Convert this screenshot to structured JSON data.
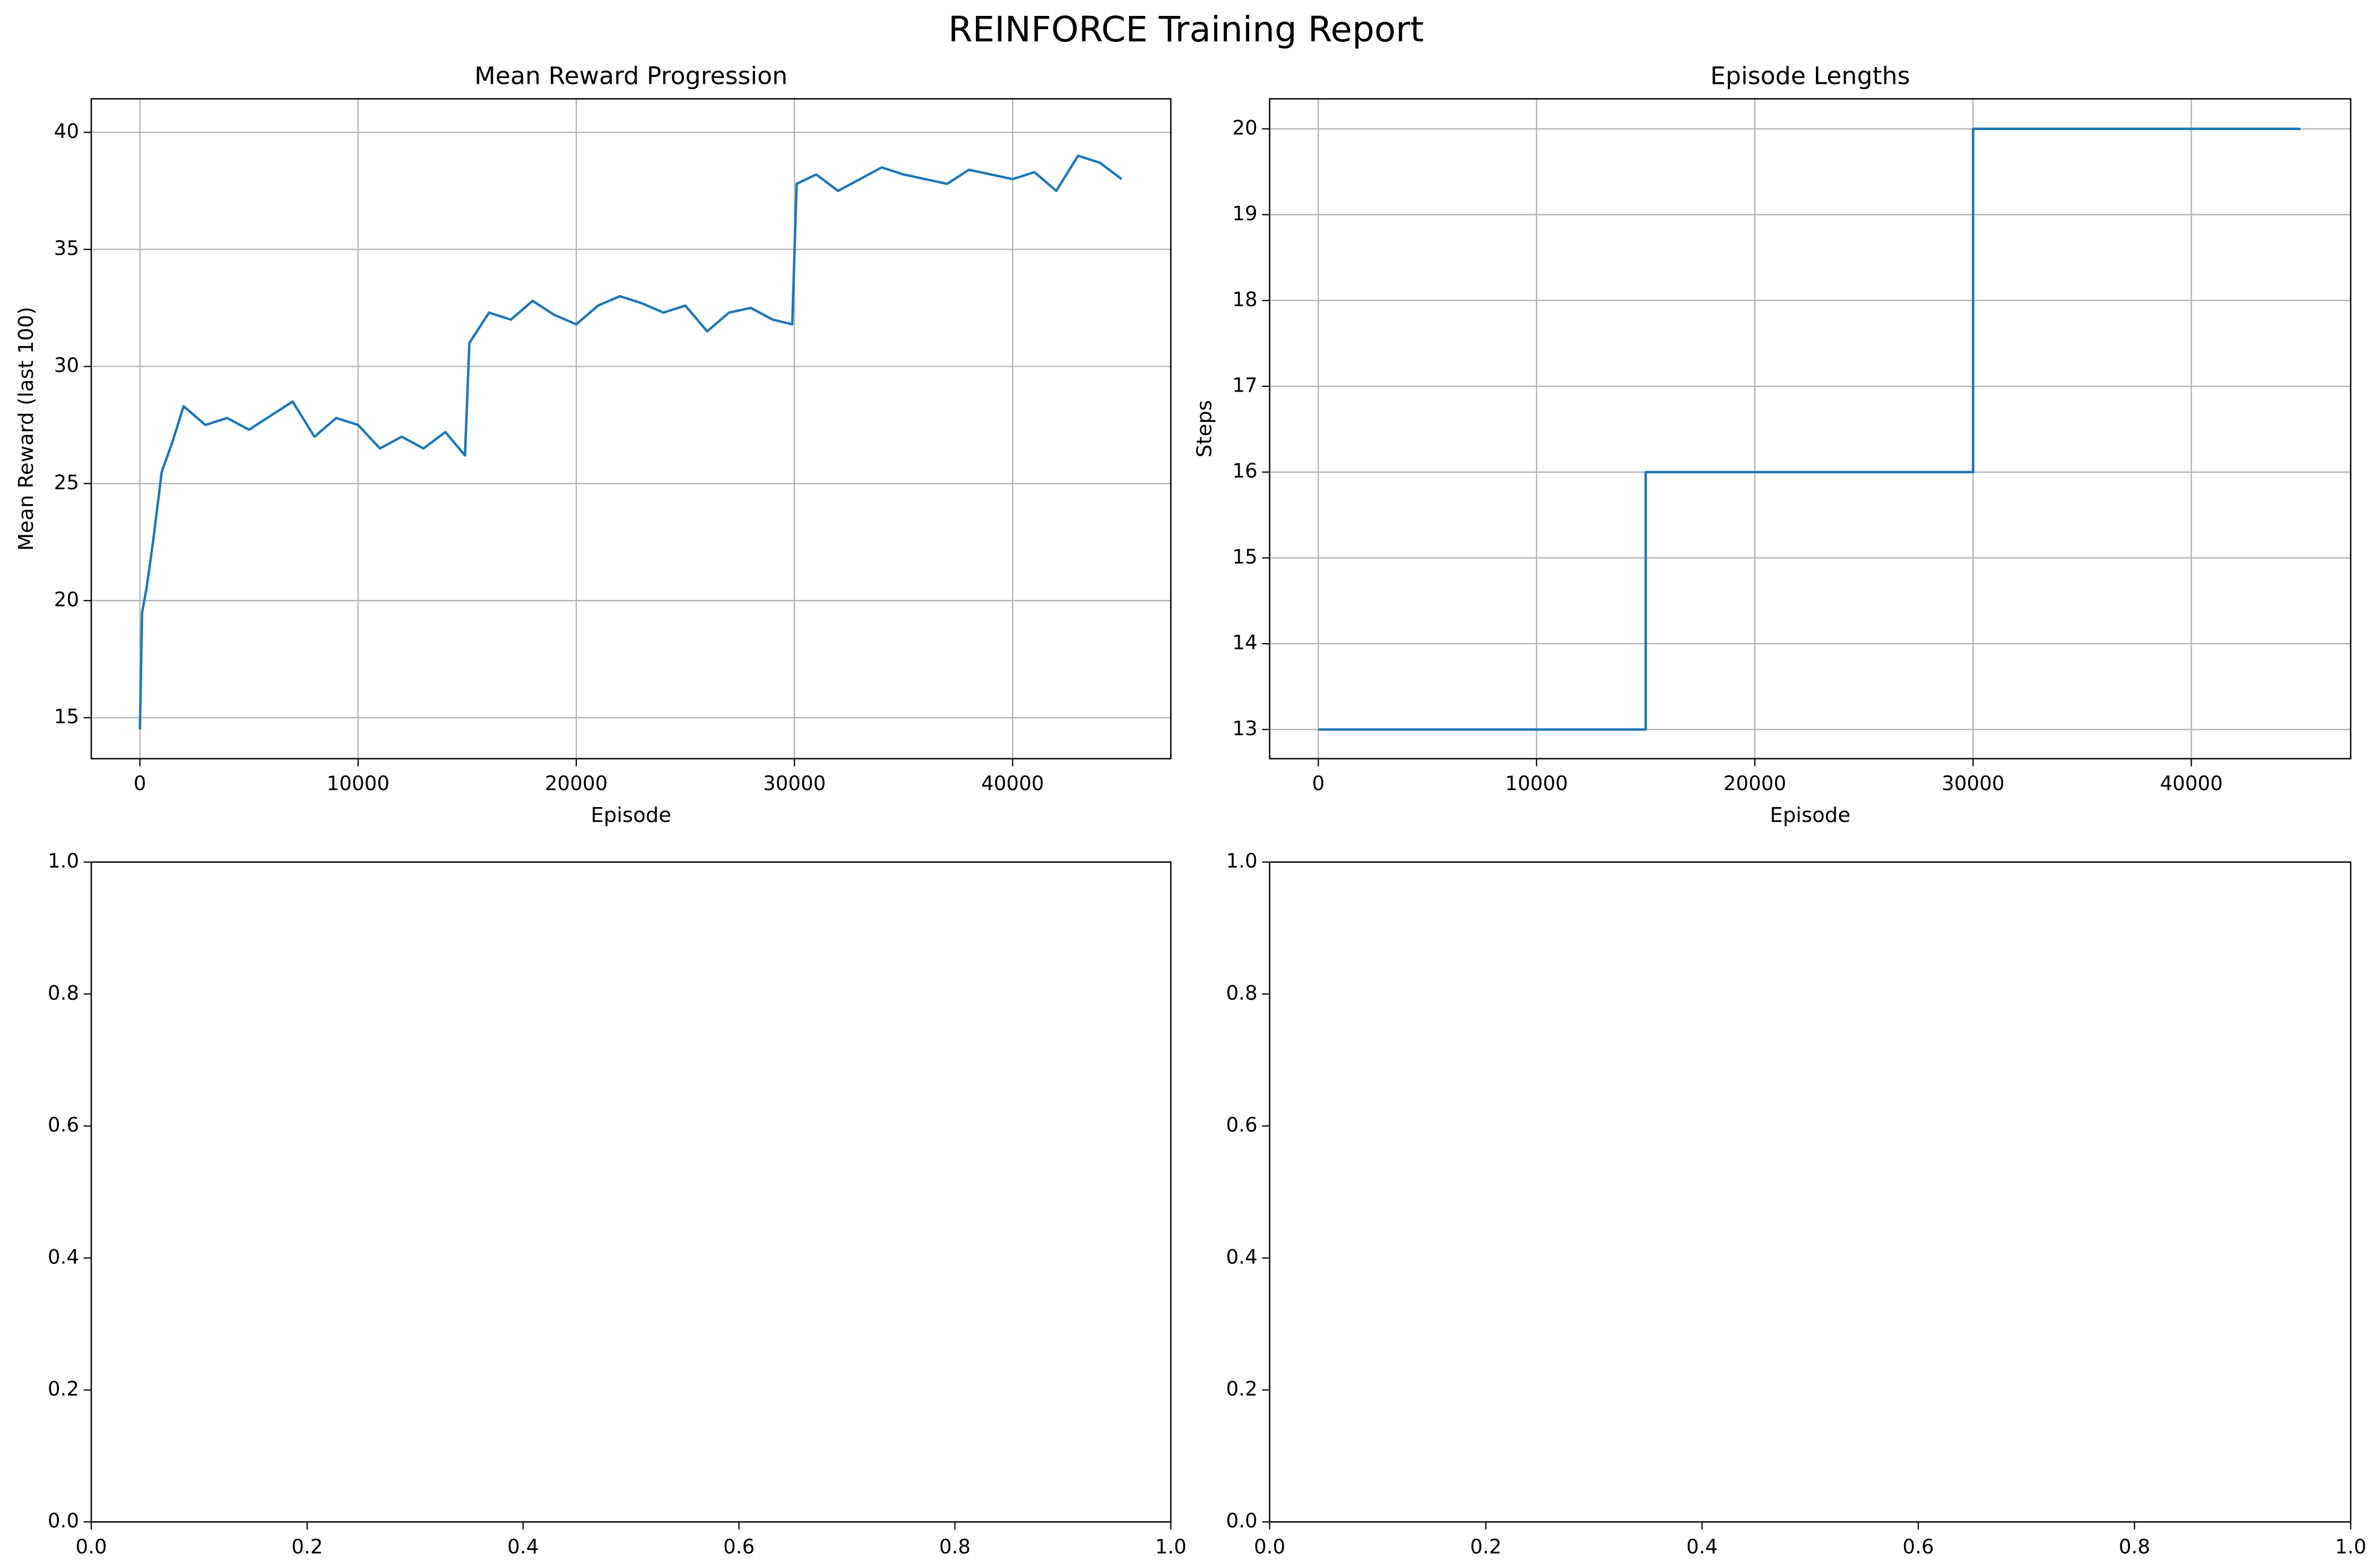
{
  "title": "REINFORCE Training Report",
  "chart_data": [
    {
      "type": "line",
      "title": "Mean Reward Progression",
      "x_label": "Episode",
      "y_label": "Mean Reward (last 100)",
      "x": [
        0,
        100,
        300,
        600,
        1000,
        1500,
        2000,
        3000,
        4000,
        5000,
        6000,
        7000,
        8000,
        9000,
        10000,
        11000,
        12000,
        13000,
        14000,
        14900,
        15100,
        16000,
        17000,
        18000,
        19000,
        20000,
        21000,
        22000,
        23000,
        24000,
        25000,
        26000,
        27000,
        28000,
        29000,
        29900,
        30100,
        31000,
        32000,
        33000,
        34000,
        35000,
        36000,
        37000,
        38000,
        39000,
        40000,
        41000,
        42000,
        43000,
        44000,
        45000
      ],
      "series": [
        {
          "name": "Mean Reward",
          "color": "#1f77b4",
          "values": [
            14.5,
            19.5,
            20.5,
            22.5,
            25.5,
            26.8,
            28.3,
            27.5,
            27.8,
            27.3,
            27.9,
            28.5,
            27.0,
            27.8,
            27.5,
            26.5,
            27.0,
            26.5,
            27.2,
            26.2,
            31.0,
            32.3,
            32.0,
            32.8,
            32.2,
            31.8,
            32.6,
            33.0,
            32.7,
            32.3,
            32.6,
            31.5,
            32.3,
            32.5,
            32.0,
            31.8,
            37.8,
            38.2,
            37.5,
            38.0,
            38.5,
            38.2,
            38.0,
            37.8,
            38.4,
            38.2,
            38.0,
            38.3,
            37.5,
            39.0,
            38.7,
            38.0
          ]
        }
      ],
      "xlim": [
        -2230,
        47250
      ],
      "ylim": [
        13.25,
        41.43
      ],
      "xticks": [
        0,
        10000,
        20000,
        30000,
        40000
      ],
      "yticks": [
        15,
        20,
        25,
        30,
        35,
        40
      ],
      "grid": true
    },
    {
      "type": "line",
      "title": "Episode Lengths",
      "x_label": "Episode",
      "y_label": "Steps",
      "x": [
        0,
        15000,
        15000,
        30000,
        30000,
        45000
      ],
      "series": [
        {
          "name": "Steps",
          "color": "#1f77b4",
          "values": [
            13,
            13,
            16,
            16,
            20,
            20
          ]
        }
      ],
      "xlim": [
        -2230,
        47300
      ],
      "ylim": [
        12.66,
        20.35
      ],
      "xticks": [
        0,
        10000,
        20000,
        30000,
        40000
      ],
      "yticks": [
        13,
        14,
        15,
        16,
        17,
        18,
        19,
        20
      ],
      "grid": true
    },
    {
      "type": "empty",
      "xlim": [
        0,
        1
      ],
      "ylim": [
        0,
        1
      ],
      "xticks": [
        {
          "value": 0,
          "label": "0.0"
        },
        {
          "value": 0.2,
          "label": "0.2"
        },
        {
          "value": 0.4,
          "label": "0.4"
        },
        {
          "value": 0.6,
          "label": "0.6"
        },
        {
          "value": 0.8,
          "label": "0.8"
        },
        {
          "value": 1,
          "label": "1.0"
        }
      ],
      "yticks": [
        {
          "value": 0,
          "label": "0.0"
        },
        {
          "value": 0.2,
          "label": "0.2"
        },
        {
          "value": 0.4,
          "label": "0.4"
        },
        {
          "value": 0.6,
          "label": "0.6"
        },
        {
          "value": 0.8,
          "label": "0.8"
        },
        {
          "value": 1,
          "label": "1.0"
        }
      ],
      "grid": false
    },
    {
      "type": "empty",
      "xlim": [
        0,
        1
      ],
      "ylim": [
        0,
        1
      ],
      "xticks": [
        {
          "value": 0,
          "label": "0.0"
        },
        {
          "value": 0.2,
          "label": "0.2"
        },
        {
          "value": 0.4,
          "label": "0.4"
        },
        {
          "value": 0.6,
          "label": "0.6"
        },
        {
          "value": 0.8,
          "label": "0.8"
        },
        {
          "value": 1,
          "label": "1.0"
        }
      ],
      "yticks": [
        {
          "value": 0,
          "label": "0.0"
        },
        {
          "value": 0.2,
          "label": "0.2"
        },
        {
          "value": 0.4,
          "label": "0.4"
        },
        {
          "value": 0.6,
          "label": "0.6"
        },
        {
          "value": 0.8,
          "label": "0.8"
        },
        {
          "value": 1,
          "label": "1.0"
        }
      ],
      "grid": false
    }
  ]
}
